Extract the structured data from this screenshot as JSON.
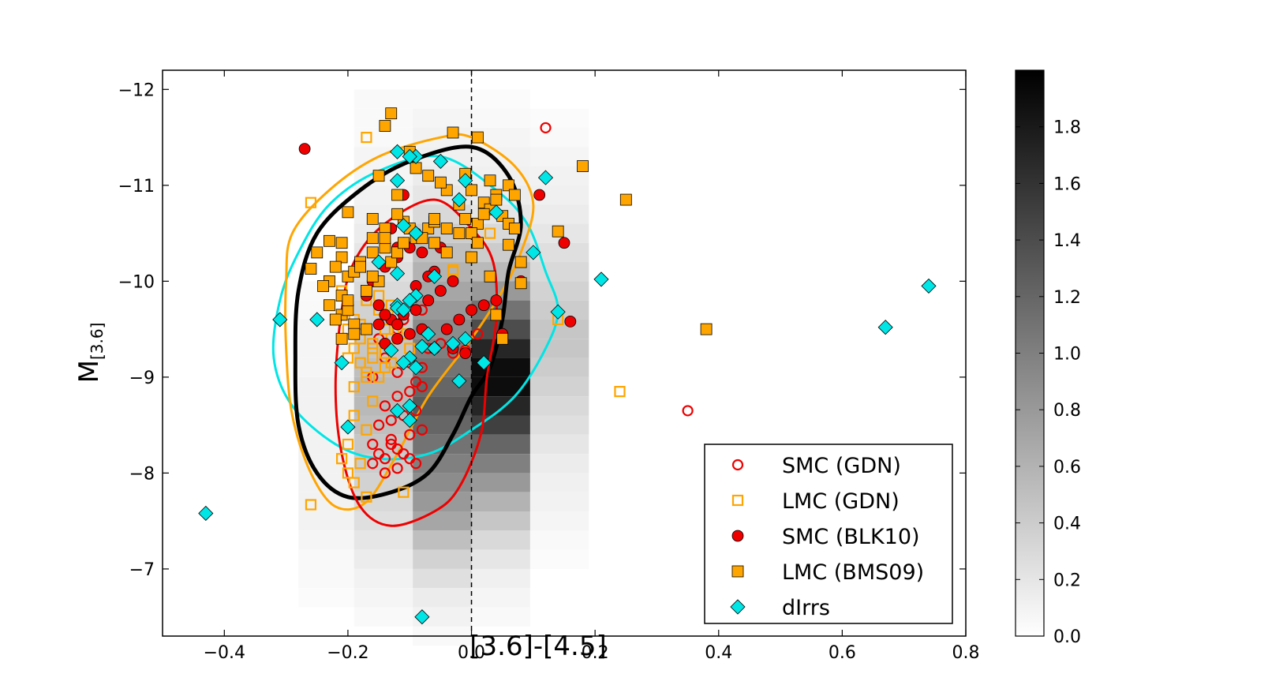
{
  "chart_data": {
    "type": "scatter",
    "title": "",
    "xlabel": "[3.6]-[4.5]",
    "ylabel_main": "M",
    "ylabel_sub": "[3.6]",
    "xlim": [
      -0.5,
      0.8
    ],
    "ylim": [
      -6.3,
      -12.2
    ],
    "y_inverted": true,
    "xticks": [
      -0.4,
      -0.2,
      0.0,
      0.2,
      0.4,
      0.6,
      0.8
    ],
    "xtick_labels": [
      "−0.4",
      "−0.2",
      "0.0",
      "0.2",
      "0.4",
      "0.6",
      "0.8"
    ],
    "yticks": [
      -12,
      -11,
      -10,
      -9,
      -8,
      -7
    ],
    "ytick_labels": [
      "−12",
      "−11",
      "−10",
      "−9",
      "−8",
      "−7"
    ],
    "reference_line_x": 0.0,
    "colorbar": {
      "min": 0.0,
      "max": 2.0,
      "ticks": [
        0.0,
        0.2,
        0.4,
        0.6,
        0.8,
        1.0,
        1.2,
        1.4,
        1.6,
        1.8
      ],
      "tick_labels": [
        "0.0",
        "0.2",
        "0.4",
        "0.6",
        "0.8",
        "1.0",
        "1.2",
        "1.4",
        "1.6",
        "1.8"
      ]
    },
    "density_grid": {
      "x_edges": [
        -0.28,
        -0.19,
        -0.095,
        0.0,
        0.095,
        0.19
      ],
      "y_top": -12.0,
      "y_step": 0.2,
      "columns": [
        [
          0,
          0,
          0,
          0,
          0,
          0,
          0,
          0,
          0,
          0,
          0.05,
          0.05,
          0.08,
          0.08,
          0.08,
          0.1,
          0.1,
          0.1,
          0.1,
          0.1,
          0.1,
          0.1,
          0.1,
          0.08,
          0.05,
          0.05,
          0.03,
          0,
          0,
          0
        ],
        [
          0.05,
          0.05,
          0.05,
          0.08,
          0.08,
          0.1,
          0.12,
          0.15,
          0.2,
          0.25,
          0.3,
          0.35,
          0.4,
          0.45,
          0.5,
          0.55,
          0.55,
          0.5,
          0.45,
          0.4,
          0.35,
          0.3,
          0.25,
          0.2,
          0.15,
          0.1,
          0.08,
          0.05,
          0,
          0
        ],
        [
          0.05,
          0.08,
          0.1,
          0.12,
          0.15,
          0.2,
          0.3,
          0.4,
          0.5,
          0.6,
          0.7,
          0.8,
          0.9,
          1.0,
          1.1,
          1.2,
          1.3,
          1.2,
          1.1,
          1.0,
          0.9,
          0.8,
          0.7,
          0.5,
          0.35,
          0.25,
          0.15,
          0.1,
          0.05,
          0
        ],
        [
          0.03,
          0.05,
          0.08,
          0.1,
          0.12,
          0.15,
          0.2,
          0.3,
          0.4,
          0.55,
          0.8,
          1.1,
          1.4,
          1.7,
          1.9,
          1.9,
          1.7,
          1.5,
          1.2,
          1.0,
          0.8,
          0.6,
          0.45,
          0.3,
          0.2,
          0.12,
          0.08,
          0.05,
          0,
          0
        ],
        [
          0,
          0.03,
          0.05,
          0.08,
          0.1,
          0.12,
          0.15,
          0.2,
          0.25,
          0.3,
          0.35,
          0.4,
          0.45,
          0.45,
          0.4,
          0.35,
          0.3,
          0.25,
          0.2,
          0.15,
          0.12,
          0.1,
          0.08,
          0.05,
          0.03,
          0,
          0,
          0,
          0,
          0
        ]
      ]
    },
    "contours": [
      {
        "name": "cyan",
        "color": "#00e5e5",
        "width": 3,
        "points": [
          [
            -0.05,
            -11.3
          ],
          [
            0.04,
            -10.95
          ],
          [
            0.09,
            -10.6
          ],
          [
            0.12,
            -10.1
          ],
          [
            0.14,
            -9.7
          ],
          [
            0.12,
            -9.3
          ],
          [
            0.07,
            -8.8
          ],
          [
            0.0,
            -8.45
          ],
          [
            -0.07,
            -8.2
          ],
          [
            -0.15,
            -8.15
          ],
          [
            -0.22,
            -8.3
          ],
          [
            -0.29,
            -8.7
          ],
          [
            -0.32,
            -9.2
          ],
          [
            -0.31,
            -9.8
          ],
          [
            -0.28,
            -10.3
          ],
          [
            -0.23,
            -10.8
          ],
          [
            -0.15,
            -11.15
          ],
          [
            -0.05,
            -11.3
          ]
        ]
      },
      {
        "name": "orange",
        "color": "#ffa500",
        "width": 3,
        "points": [
          [
            0.0,
            -11.5
          ],
          [
            0.07,
            -11.2
          ],
          [
            0.1,
            -10.8
          ],
          [
            0.08,
            -10.3
          ],
          [
            0.05,
            -9.9
          ],
          [
            0.0,
            -9.4
          ],
          [
            -0.07,
            -8.8
          ],
          [
            -0.12,
            -8.2
          ],
          [
            -0.17,
            -7.7
          ],
          [
            -0.22,
            -7.65
          ],
          [
            -0.26,
            -8.0
          ],
          [
            -0.29,
            -8.6
          ],
          [
            -0.3,
            -9.3
          ],
          [
            -0.3,
            -10.0
          ],
          [
            -0.29,
            -10.5
          ],
          [
            -0.23,
            -10.95
          ],
          [
            -0.15,
            -11.3
          ],
          [
            -0.05,
            -11.5
          ],
          [
            0.0,
            -11.5
          ]
        ]
      },
      {
        "name": "black",
        "color": "#000000",
        "width": 5,
        "points": [
          [
            0.0,
            -11.4
          ],
          [
            0.06,
            -11.1
          ],
          [
            0.08,
            -10.6
          ],
          [
            0.06,
            -10.1
          ],
          [
            0.05,
            -9.6
          ],
          [
            0.03,
            -9.1
          ],
          [
            0.0,
            -8.8
          ],
          [
            -0.03,
            -8.4
          ],
          [
            -0.07,
            -8.0
          ],
          [
            -0.13,
            -7.8
          ],
          [
            -0.2,
            -7.75
          ],
          [
            -0.25,
            -8.0
          ],
          [
            -0.28,
            -8.5
          ],
          [
            -0.285,
            -9.2
          ],
          [
            -0.28,
            -9.9
          ],
          [
            -0.25,
            -10.5
          ],
          [
            -0.18,
            -10.95
          ],
          [
            -0.1,
            -11.25
          ],
          [
            0.0,
            -11.4
          ]
        ]
      },
      {
        "name": "red",
        "color": "#ee0000",
        "width": 3,
        "points": [
          [
            -0.06,
            -10.85
          ],
          [
            0.0,
            -10.55
          ],
          [
            0.035,
            -10.2
          ],
          [
            0.04,
            -9.6
          ],
          [
            0.025,
            -9.0
          ],
          [
            0.015,
            -8.4
          ],
          [
            -0.02,
            -7.85
          ],
          [
            -0.06,
            -7.6
          ],
          [
            -0.13,
            -7.45
          ],
          [
            -0.18,
            -7.65
          ],
          [
            -0.21,
            -8.2
          ],
          [
            -0.22,
            -8.9
          ],
          [
            -0.21,
            -9.7
          ],
          [
            -0.19,
            -10.2
          ],
          [
            -0.14,
            -10.6
          ],
          [
            -0.06,
            -10.85
          ]
        ]
      }
    ],
    "series": [
      {
        "name": "SMC (GDN)",
        "marker": "circle-open",
        "color": "#ee0000",
        "x": [
          0.12,
          0.35,
          0.01,
          -0.01,
          -0.03,
          -0.05,
          -0.08,
          -0.1,
          -0.12,
          -0.14,
          -0.16,
          -0.08,
          -0.1,
          -0.12,
          -0.14,
          -0.09,
          -0.11,
          -0.13,
          -0.15,
          -0.1,
          -0.13,
          -0.16,
          -0.08,
          -0.11,
          -0.14,
          -0.12,
          -0.15,
          -0.09,
          -0.12,
          -0.14,
          -0.1,
          -0.07,
          -0.09,
          -0.16,
          -0.13,
          -0.12,
          -0.15,
          -0.11,
          -0.08
        ],
        "y": [
          -11.6,
          -8.65,
          -9.45,
          -9.28,
          -9.25,
          -9.35,
          -9.1,
          -9.15,
          -9.05,
          -9.2,
          -9.0,
          -8.9,
          -8.85,
          -8.8,
          -8.7,
          -8.65,
          -8.6,
          -8.55,
          -8.5,
          -8.4,
          -8.35,
          -8.3,
          -8.45,
          -8.2,
          -8.15,
          -8.25,
          -8.2,
          -8.1,
          -8.05,
          -8.0,
          -8.15,
          -9.3,
          -8.95,
          -8.1,
          -8.3,
          -9.5,
          -9.4,
          -9.6,
          -9.7
        ]
      },
      {
        "name": "LMC (GDN)",
        "marker": "square-open",
        "color": "#ffa500",
        "x": [
          -0.17,
          -0.26,
          -0.26,
          0.14,
          0.24,
          -0.03,
          -0.11,
          -0.19,
          -0.17,
          -0.2,
          -0.21,
          -0.18,
          -0.2,
          -0.19,
          -0.17,
          -0.15,
          -0.14,
          -0.16,
          -0.19,
          -0.18,
          -0.2,
          -0.2,
          -0.16,
          -0.17,
          -0.19,
          -0.16,
          -0.14,
          -0.13,
          -0.1,
          -0.12,
          -0.14,
          -0.15,
          -0.12,
          -0.17,
          -0.18,
          -0.16,
          -0.14,
          -0.19,
          -0.17,
          -0.15,
          -0.21,
          -0.11,
          -0.13,
          -0.13,
          -0.15,
          -0.18,
          -0.03,
          0.03
        ],
        "y": [
          -11.5,
          -10.82,
          -7.67,
          -9.6,
          -8.85,
          -10.12,
          -7.8,
          -8.6,
          -8.45,
          -8.3,
          -8.15,
          -8.1,
          -8.0,
          -7.9,
          -7.75,
          -9.0,
          -9.1,
          -9.2,
          -9.3,
          -9.4,
          -9.5,
          -9.2,
          -9.3,
          -9.0,
          -8.9,
          -8.75,
          -9.6,
          -9.4,
          -9.3,
          -9.5,
          -9.5,
          -9.7,
          -9.65,
          -9.05,
          -9.15,
          -9.35,
          -9.25,
          -9.6,
          -9.8,
          -10.0,
          -9.9,
          -9.45,
          -9.15,
          -9.75,
          -9.85,
          -9.55,
          -10.1,
          -10.5
        ]
      },
      {
        "name": "SMC (BLK10)",
        "marker": "circle-filled",
        "color": "#ee0000",
        "x": [
          -0.27,
          -0.11,
          -0.09,
          -0.12,
          -0.11,
          -0.08,
          -0.1,
          -0.06,
          -0.03,
          -0.05,
          -0.07,
          -0.09,
          -0.11,
          -0.13,
          -0.15,
          -0.08,
          -0.1,
          -0.12,
          -0.14,
          -0.06,
          -0.04,
          -0.02,
          0.0,
          0.02,
          0.04,
          0.05,
          0.08,
          0.11,
          0.15,
          0.16,
          -0.13,
          -0.12,
          -0.14,
          -0.16,
          -0.17,
          -0.05,
          -0.07,
          -0.09,
          -0.03,
          -0.01,
          -0.15,
          -0.14,
          -0.12
        ],
        "y": [
          -11.38,
          -10.9,
          -10.5,
          -10.25,
          -10.4,
          -10.3,
          -10.35,
          -10.1,
          -10.0,
          -9.9,
          -9.8,
          -9.7,
          -9.65,
          -9.6,
          -9.55,
          -9.5,
          -9.45,
          -9.4,
          -9.35,
          -9.3,
          -9.5,
          -9.6,
          -9.7,
          -9.75,
          -9.8,
          -9.45,
          -10.0,
          -10.9,
          -10.4,
          -9.58,
          -10.55,
          -10.35,
          -10.15,
          -10.0,
          -9.85,
          -10.35,
          -10.05,
          -9.95,
          -9.3,
          -9.25,
          -9.75,
          -9.65,
          -9.55
        ]
      },
      {
        "name": "LMC (BMS09)",
        "marker": "square-filled",
        "color": "#ffa500",
        "x": [
          -0.13,
          -0.14,
          -0.03,
          0.01,
          -0.1,
          0.18,
          0.25,
          0.14,
          0.38,
          0.08,
          0.06,
          0.04,
          0.06,
          0.03,
          -0.01,
          0.0,
          0.02,
          0.03,
          0.05,
          0.06,
          0.07,
          0.01,
          -0.02,
          -0.04,
          -0.05,
          -0.07,
          -0.09,
          -0.12,
          -0.11,
          -0.14,
          -0.16,
          -0.2,
          -0.23,
          -0.26,
          -0.21,
          -0.22,
          -0.23,
          -0.2,
          -0.21,
          -0.24,
          -0.23,
          -0.21,
          -0.19,
          -0.17,
          -0.19,
          -0.18,
          -0.16,
          -0.14,
          -0.15,
          -0.17,
          -0.2,
          -0.22,
          -0.25,
          -0.21,
          -0.21,
          -0.19,
          -0.2,
          -0.18,
          -0.16,
          -0.13,
          -0.12,
          -0.14,
          -0.15,
          -0.16,
          -0.11,
          -0.09,
          -0.07,
          -0.06,
          -0.01,
          0.02,
          0.04,
          0.07,
          0.08,
          0.04,
          0.05,
          0.0,
          -0.02,
          -0.04,
          -0.06,
          -0.08,
          -0.1,
          -0.12,
          0.0,
          -0.06,
          -0.04,
          0.01,
          0.03
        ],
        "y": [
          -11.75,
          -11.62,
          -11.55,
          -11.5,
          -11.35,
          -11.2,
          -10.85,
          -10.52,
          -9.5,
          -9.98,
          -10.38,
          -10.9,
          -11.0,
          -11.05,
          -11.12,
          -10.95,
          -10.82,
          -10.75,
          -10.68,
          -10.6,
          -10.55,
          -10.6,
          -10.8,
          -10.95,
          -11.03,
          -11.1,
          -11.18,
          -10.9,
          -10.62,
          -10.55,
          -10.45,
          -10.72,
          -10.42,
          -10.13,
          -10.25,
          -10.15,
          -10.0,
          -10.05,
          -9.85,
          -9.95,
          -9.75,
          -9.65,
          -9.55,
          -9.5,
          -9.45,
          -10.2,
          -10.3,
          -10.35,
          -10.0,
          -9.9,
          -9.7,
          -9.6,
          -10.3,
          -10.4,
          -9.4,
          -10.1,
          -9.8,
          -10.15,
          -10.05,
          -10.2,
          -10.3,
          -10.45,
          -11.1,
          -10.65,
          -10.4,
          -10.45,
          -10.55,
          -10.62,
          -10.65,
          -10.7,
          -10.85,
          -10.9,
          -10.2,
          -9.65,
          -9.4,
          -10.25,
          -10.5,
          -10.3,
          -10.4,
          -10.45,
          -10.55,
          -10.7,
          -10.5,
          -10.65,
          -10.55,
          -10.4,
          -10.05
        ]
      },
      {
        "name": "dIrrs",
        "marker": "diamond-filled",
        "color": "#00e5e5",
        "x": [
          -0.43,
          -0.08,
          0.74,
          0.67,
          0.21,
          0.14,
          0.1,
          0.12,
          -0.31,
          -0.25,
          -0.21,
          -0.2,
          -0.12,
          -0.09,
          -0.05,
          -0.1,
          -0.12,
          -0.01,
          -0.02,
          0.04,
          -0.11,
          -0.09,
          -0.15,
          -0.12,
          -0.06,
          -0.09,
          -0.1,
          -0.12,
          -0.12,
          -0.11,
          -0.07,
          -0.08,
          -0.06,
          -0.03,
          -0.02,
          -0.01,
          0.02,
          -0.1,
          -0.09,
          -0.13,
          -0.11,
          -0.1,
          -0.1,
          -0.12
        ],
        "y": [
          -7.58,
          -6.5,
          -9.95,
          -9.52,
          -10.02,
          -9.68,
          -10.3,
          -11.08,
          -9.6,
          -9.6,
          -9.15,
          -8.48,
          -11.35,
          -11.3,
          -11.25,
          -11.3,
          -11.05,
          -11.05,
          -10.85,
          -10.72,
          -10.58,
          -10.5,
          -10.2,
          -10.08,
          -10.05,
          -9.85,
          -9.8,
          -9.75,
          -9.72,
          -9.7,
          -9.45,
          -9.32,
          -9.3,
          -9.35,
          -8.96,
          -9.4,
          -9.15,
          -9.2,
          -9.1,
          -9.28,
          -9.15,
          -8.7,
          -8.55,
          -8.65
        ]
      }
    ],
    "legend": {
      "position": "lower-right",
      "entries": [
        "SMC (GDN)",
        "LMC (GDN)",
        "SMC (BLK10)",
        "LMC (BMS09)",
        "dIrrs"
      ]
    }
  }
}
